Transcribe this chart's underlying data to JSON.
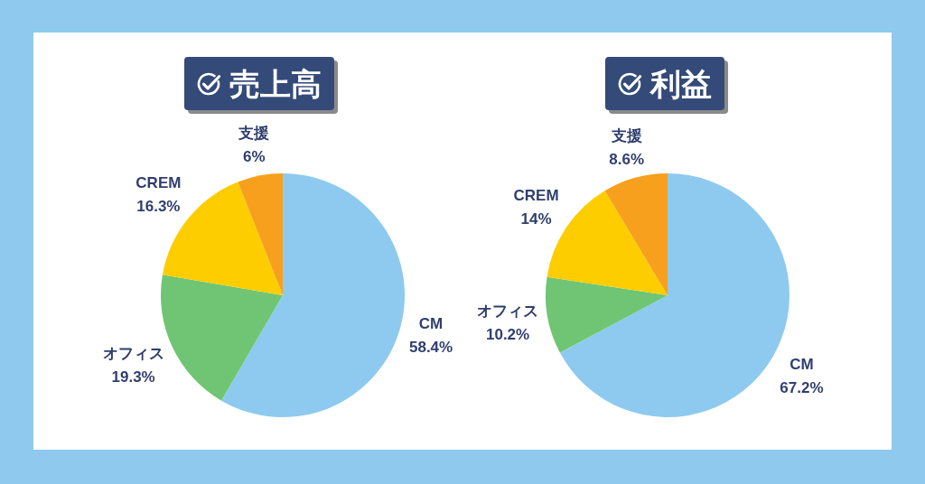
{
  "chart_data": [
    {
      "type": "pie",
      "title": "売上高",
      "categories": [
        "CM",
        "オフィス",
        "CREM",
        "支援"
      ],
      "values": [
        58.4,
        19.3,
        16.3,
        6
      ],
      "colors": [
        "#8ecaef",
        "#6fc573",
        "#fecd00",
        "#f7a01d"
      ],
      "value_labels": [
        "58.4%",
        "19.3%",
        "16.3%",
        "6%"
      ]
    },
    {
      "type": "pie",
      "title": "利益",
      "categories": [
        "CM",
        "オフィス",
        "CREM",
        "支援"
      ],
      "values": [
        67.2,
        10.2,
        14,
        8.6
      ],
      "colors": [
        "#8ecaef",
        "#6fc573",
        "#fecd00",
        "#f7a01d"
      ],
      "value_labels": [
        "67.2%",
        "10.2%",
        "14%",
        "8.6%"
      ]
    }
  ]
}
